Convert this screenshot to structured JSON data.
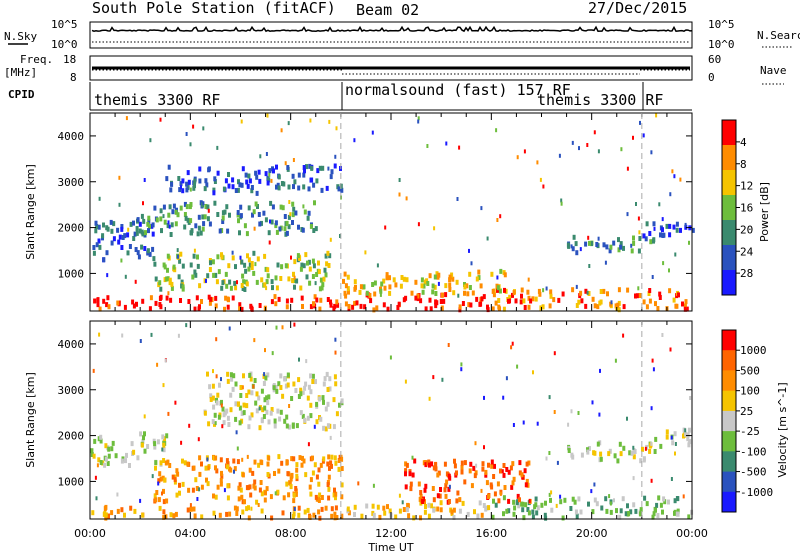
{
  "header": {
    "station": "South Pole Station (fitACF)",
    "beam": "Beam 02",
    "date": "27/Dec/2015"
  },
  "top_panels": {
    "nsky_label": "N.Sky",
    "nsky_ticks": [
      "10^5",
      "10^0"
    ],
    "nsearch_label": "N.Search",
    "nsearch_ticks": [
      "10^5",
      "10^0"
    ],
    "freq_label": "Freq.",
    "freq_unit": "[MHz]",
    "freq_ticks": [
      "18",
      "8"
    ],
    "nave_label": "Nave",
    "nave_ticks": [
      "60",
      "0"
    ],
    "cpid_label": "CPID",
    "cpid_segments": [
      {
        "label": "themis 3300 RF",
        "start": 0,
        "end": 10
      },
      {
        "label": "normalsound (fast) 157 RF",
        "start": 10,
        "end": 22
      },
      {
        "label": "themis 3300 RF",
        "start": 22,
        "end": 24
      }
    ]
  },
  "chart_data": [
    {
      "type": "heatmap",
      "title": "",
      "xlabel": "",
      "ylabel": "Slant Range [km]",
      "xlim": [
        0,
        24
      ],
      "ylim": [
        180,
        4500
      ],
      "yticks": [
        "1000",
        "2000",
        "3000",
        "4000"
      ],
      "colorbar": {
        "label": "Power [dB]",
        "ticks": [
          "4",
          "8",
          "12",
          "16",
          "20",
          "24",
          "28"
        ],
        "colors": [
          "#1a1aff",
          "#2a52be",
          "#3a8a6e",
          "#6dbd3c",
          "#f5c400",
          "#ff8c00",
          "#ff0000"
        ]
      },
      "regions": [
        {
          "t": [
            0.0,
            10.0
          ],
          "r": [
            250,
            550
          ],
          "level": 6
        },
        {
          "t": [
            10.0,
            16.0
          ],
          "r": [
            250,
            600
          ],
          "level": 6
        },
        {
          "t": [
            16.0,
            24.0
          ],
          "r": [
            250,
            700
          ],
          "level": 5
        },
        {
          "t": [
            0.0,
            2.5
          ],
          "r": [
            1350,
            2250
          ],
          "level": 1
        },
        {
          "t": [
            2.0,
            9.0
          ],
          "r": [
            1900,
            2600
          ],
          "level": 2
        },
        {
          "t": [
            3.0,
            10.0
          ],
          "r": [
            2800,
            3400
          ],
          "level": 1
        },
        {
          "t": [
            2.5,
            9.5
          ],
          "r": [
            700,
            1500
          ],
          "level": 3
        },
        {
          "t": [
            10.0,
            16.5
          ],
          "r": [
            600,
            1100
          ],
          "level": 4
        },
        {
          "t": [
            19.0,
            22.5
          ],
          "r": [
            1500,
            1850
          ],
          "level": 2
        },
        {
          "t": [
            22.0,
            24.0
          ],
          "r": [
            1800,
            2200
          ],
          "level": 1
        }
      ]
    },
    {
      "type": "heatmap",
      "title": "",
      "xlabel": "Time UT",
      "ylabel": "Slant Range [km]",
      "xlim": [
        0,
        24
      ],
      "ylim": [
        180,
        4500
      ],
      "xticks": [
        "00:00",
        "04:00",
        "08:00",
        "12:00",
        "16:00",
        "20:00",
        "00:00"
      ],
      "yticks": [
        "1000",
        "2000",
        "3000",
        "4000"
      ],
      "colorbar": {
        "label": "Velocity [m s^-1]",
        "ticks": [
          "1000",
          "500",
          "100",
          "25",
          "-25",
          "-100",
          "-500",
          "-1000"
        ],
        "colors": [
          "#1a1aff",
          "#2a52be",
          "#3a8a6e",
          "#6dbd3c",
          "#c8c8c8",
          "#f5c400",
          "#ff8c00",
          "#ff6400",
          "#ff0000"
        ]
      },
      "regions": [
        {
          "t": [
            0.0,
            10.0
          ],
          "r": [
            250,
            500
          ],
          "level": 6
        },
        {
          "t": [
            10.0,
            16.0
          ],
          "r": [
            250,
            600
          ],
          "level": 5
        },
        {
          "t": [
            16.0,
            24.0
          ],
          "r": [
            250,
            700
          ],
          "level": 3
        },
        {
          "t": [
            0.0,
            3.0
          ],
          "r": [
            1400,
            2100
          ],
          "level": 4
        },
        {
          "t": [
            4.5,
            10.0
          ],
          "r": [
            2200,
            3400
          ],
          "level": 4
        },
        {
          "t": [
            2.5,
            10.0
          ],
          "r": [
            600,
            1600
          ],
          "level": 6
        },
        {
          "t": [
            12.5,
            17.5
          ],
          "r": [
            600,
            1500
          ],
          "level": 7
        },
        {
          "t": [
            19.0,
            22.5
          ],
          "r": [
            1500,
            1900
          ],
          "level": 4
        },
        {
          "t": [
            22.0,
            24.0
          ],
          "r": [
            1800,
            2200
          ],
          "level": 4
        }
      ]
    }
  ]
}
